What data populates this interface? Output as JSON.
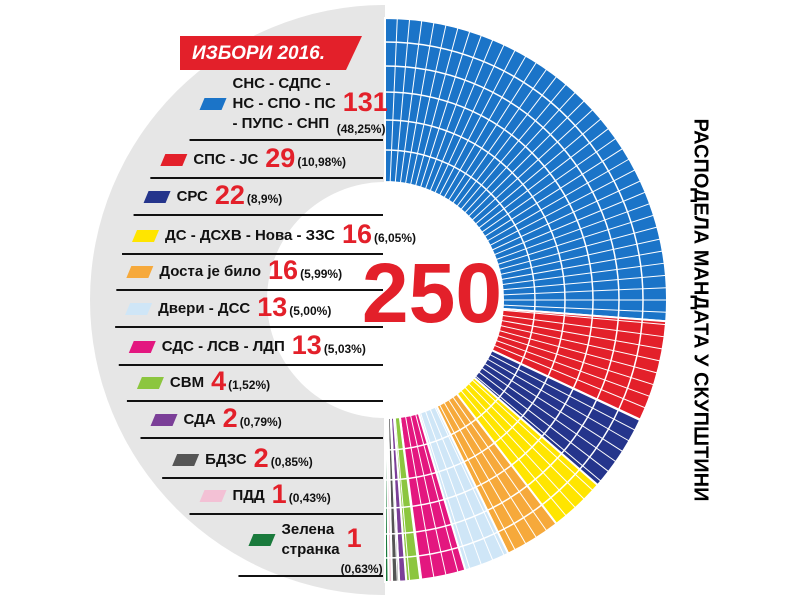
{
  "chart_data": {
    "type": "parliament",
    "title": "ИЗБОРИ 2016.",
    "subtitle": "РАСПОДЕЛА МАНДАТА У СКУПШТИНИ",
    "total": 250,
    "categories": [
      [
        "СНС - СДПС -",
        "НС - СПО - ПС",
        "- ПУПС - СНП"
      ],
      "СПС - ЈС",
      "СРС",
      "ДС - ДСХВ - Нова - ЗЗС",
      "Доста је било",
      "Двери - ДСС",
      "СДС - ЛСВ - ЛДП",
      "СВМ",
      "СДА",
      "БДЗС",
      "ПДД",
      [
        "Зелена",
        "странка"
      ]
    ],
    "values": [
      131,
      29,
      22,
      16,
      16,
      13,
      13,
      4,
      2,
      2,
      1,
      1
    ],
    "shares": [
      48.25,
      10.98,
      8.9,
      6.05,
      5.99,
      5.0,
      5.03,
      1.52,
      0.79,
      0.85,
      0.43,
      0.63
    ],
    "share_labels": [
      "(48,25%)",
      "(10,98%)",
      "(8,9%)",
      "(6,05%)",
      "(5,99%)",
      "(5,00%)",
      "(5,03%)",
      "(1,52%)",
      "(0,79%)",
      "(0,85%)",
      "(0,43%)",
      "(0,63%)"
    ],
    "colors": [
      "#1b74c8",
      "#e3202a",
      "#25358c",
      "#ffe500",
      "#f6a93b",
      "#cfe6f7",
      "#e3177f",
      "#8cc63f",
      "#7b3f98",
      "#555555",
      "#f3c1d5",
      "#1a7a3c"
    ]
  }
}
